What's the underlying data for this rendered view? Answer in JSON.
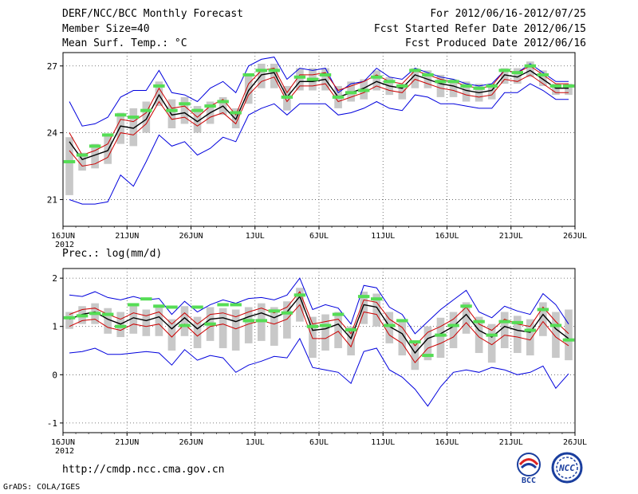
{
  "header": {
    "title": "DERF/NCC/BCC Monthly Forecast",
    "member_size": "Member Size=40",
    "variable": "Mean Surf. Temp.: °C",
    "period": "For 2012/06/16-2012/07/25",
    "refer_date": "Fcst Started Refer Date 2012/06/15",
    "produced_date": "Fcst Produced Date 2012/06/16"
  },
  "footer": {
    "url": "http://cmdp.ncc.cma.gov.cn",
    "credit": "GrADS: COLA/IGES",
    "logo_left_text": "BCC",
    "logo_right_text": "NCC"
  },
  "colors": {
    "envelope": "#0000dd",
    "spread": "#cc0000",
    "mean": "#000000",
    "obs": "#55dd55",
    "box": "#c8c8c8"
  },
  "chart_data": [
    {
      "type": "line",
      "title": "Mean Surf. Temp.: °C",
      "x_ticks": [
        "16JUN",
        "21JUN",
        "26JUN",
        "1JUL",
        "6JUL",
        "11JUL",
        "16JUL",
        "21JUL",
        "26JUL"
      ],
      "x_tick_days": [
        0,
        5,
        10,
        15,
        20,
        25,
        30,
        35,
        40
      ],
      "year_label": "2012",
      "ylim": [
        19.8,
        27.6
      ],
      "yticks": [
        21,
        24,
        27
      ],
      "series": [
        {
          "name": "max",
          "values": [
            25.4,
            24.3,
            24.4,
            24.7,
            25.6,
            25.9,
            25.9,
            26.8,
            25.8,
            25.7,
            25.4,
            26.0,
            26.3,
            25.8,
            27.0,
            27.3,
            27.4,
            26.4,
            26.9,
            26.8,
            26.9,
            25.8,
            26.2,
            26.3,
            26.9,
            26.5,
            26.4,
            26.9,
            26.7,
            26.5,
            26.4,
            26.2,
            26.1,
            26.2,
            26.8,
            26.7,
            27.1,
            26.7,
            26.3,
            26.3
          ]
        },
        {
          "name": "upper",
          "values": [
            24.0,
            23.0,
            23.2,
            23.5,
            24.6,
            24.5,
            24.9,
            26.0,
            25.1,
            25.2,
            24.7,
            25.2,
            25.5,
            24.8,
            26.2,
            26.8,
            26.9,
            25.8,
            26.6,
            26.6,
            26.7,
            25.9,
            26.1,
            26.3,
            26.6,
            26.3,
            26.2,
            26.8,
            26.6,
            26.4,
            26.3,
            26.1,
            26.0,
            26.1,
            26.8,
            26.7,
            27.0,
            26.6,
            26.2,
            26.2
          ]
        },
        {
          "name": "mean",
          "values": [
            23.6,
            22.8,
            23.0,
            23.2,
            24.3,
            24.2,
            24.6,
            25.7,
            24.8,
            24.9,
            24.5,
            24.9,
            25.2,
            24.6,
            25.9,
            26.6,
            26.7,
            25.6,
            26.3,
            26.3,
            26.4,
            25.6,
            25.8,
            26.0,
            26.3,
            26.1,
            26.0,
            26.6,
            26.4,
            26.2,
            26.1,
            25.9,
            25.8,
            25.9,
            26.6,
            26.5,
            26.8,
            26.4,
            26.0,
            26.0
          ]
        },
        {
          "name": "lower",
          "values": [
            23.2,
            22.5,
            22.6,
            22.9,
            24.0,
            23.9,
            24.4,
            25.4,
            24.6,
            24.7,
            24.3,
            24.7,
            24.9,
            24.4,
            25.7,
            26.3,
            26.5,
            25.4,
            26.1,
            26.1,
            26.2,
            25.4,
            25.6,
            25.8,
            26.1,
            25.9,
            25.8,
            26.4,
            26.2,
            26.0,
            25.9,
            25.7,
            25.6,
            25.7,
            26.4,
            26.3,
            26.6,
            26.2,
            25.8,
            25.8
          ]
        },
        {
          "name": "min",
          "values": [
            21.0,
            20.8,
            20.8,
            20.9,
            22.1,
            21.6,
            22.7,
            23.9,
            23.4,
            23.6,
            23.0,
            23.3,
            23.8,
            23.6,
            24.8,
            25.1,
            25.3,
            24.8,
            25.3,
            25.3,
            25.3,
            24.8,
            24.9,
            25.1,
            25.4,
            25.1,
            25.0,
            25.7,
            25.6,
            25.3,
            25.3,
            25.2,
            25.1,
            25.1,
            25.8,
            25.8,
            26.2,
            25.9,
            25.5,
            25.5
          ]
        },
        {
          "name": "box_high",
          "values": [
            23.8,
            23.1,
            23.5,
            23.9,
            24.9,
            25.1,
            25.4,
            26.3,
            25.5,
            25.6,
            25.2,
            25.4,
            25.6,
            25.1,
            26.6,
            27.1,
            27.1,
            26.1,
            26.9,
            26.9,
            26.9,
            26.1,
            26.3,
            26.4,
            26.8,
            26.5,
            26.2,
            26.9,
            26.8,
            26.6,
            26.4,
            26.3,
            26.2,
            26.2,
            26.9,
            26.9,
            27.2,
            26.8,
            26.2,
            26.2
          ]
        },
        {
          "name": "box_low",
          "values": [
            21.2,
            22.3,
            22.4,
            22.6,
            23.5,
            23.4,
            24.0,
            25.2,
            24.2,
            24.4,
            24.0,
            24.4,
            24.8,
            24.2,
            25.3,
            26.0,
            26.0,
            25.0,
            25.9,
            25.9,
            25.9,
            25.1,
            25.4,
            25.5,
            25.9,
            25.7,
            25.5,
            26.0,
            26.0,
            25.6,
            25.6,
            25.4,
            25.4,
            25.5,
            26.2,
            26.2,
            26.5,
            26.1,
            25.7,
            25.7
          ]
        },
        {
          "name": "obs",
          "values": [
            22.7,
            23.0,
            23.4,
            23.9,
            24.8,
            24.7,
            25.0,
            26.1,
            25.0,
            25.3,
            25.0,
            25.2,
            25.4,
            24.9,
            26.6,
            26.8,
            26.8,
            25.6,
            26.5,
            26.4,
            26.6,
            25.6,
            25.8,
            25.9,
            26.5,
            26.3,
            26.1,
            26.8,
            26.6,
            26.3,
            26.3,
            26.1,
            26.0,
            26.1,
            26.8,
            26.7,
            27.0,
            26.6,
            26.1,
            26.1
          ]
        }
      ]
    },
    {
      "type": "line",
      "title": "Prec.: log(mm/d)",
      "x_ticks": [
        "16JUN",
        "21JUN",
        "26JUN",
        "1JUL",
        "6JUL",
        "11JUL",
        "16JUL",
        "21JUL",
        "26JUL"
      ],
      "x_tick_days": [
        0,
        5,
        10,
        15,
        20,
        25,
        30,
        35,
        40
      ],
      "year_label": "2012",
      "ylim": [
        -1.2,
        2.2
      ],
      "yticks": [
        -1,
        0,
        1,
        2
      ],
      "series": [
        {
          "name": "max",
          "values": [
            1.65,
            1.62,
            1.72,
            1.6,
            1.55,
            1.62,
            1.55,
            1.58,
            1.25,
            1.52,
            1.3,
            1.45,
            1.55,
            1.48,
            1.58,
            1.6,
            1.55,
            1.65,
            2.0,
            1.35,
            1.45,
            1.38,
            1.05,
            1.85,
            1.8,
            1.4,
            1.25,
            0.85,
            1.1,
            1.35,
            1.55,
            1.75,
            1.3,
            1.18,
            1.42,
            1.32,
            1.25,
            1.68,
            1.45,
            1.05
          ]
        },
        {
          "name": "upper",
          "values": [
            1.25,
            1.35,
            1.38,
            1.25,
            1.15,
            1.28,
            1.22,
            1.3,
            1.05,
            1.28,
            1.05,
            1.25,
            1.28,
            1.2,
            1.3,
            1.38,
            1.28,
            1.4,
            1.72,
            1.05,
            1.1,
            1.15,
            0.85,
            1.55,
            1.5,
            1.15,
            0.98,
            0.6,
            0.88,
            1.0,
            1.15,
            1.4,
            1.05,
            0.92,
            1.15,
            1.05,
            1.0,
            1.4,
            1.1,
            0.85
          ]
        },
        {
          "name": "mean",
          "values": [
            1.15,
            1.25,
            1.3,
            1.15,
            1.05,
            1.18,
            1.12,
            1.2,
            0.95,
            1.18,
            0.95,
            1.15,
            1.18,
            1.1,
            1.2,
            1.28,
            1.18,
            1.3,
            1.62,
            0.92,
            0.95,
            1.05,
            0.75,
            1.45,
            1.4,
            1.0,
            0.85,
            0.45,
            0.75,
            0.85,
            1.0,
            1.25,
            0.92,
            0.78,
            1.0,
            0.92,
            0.88,
            1.25,
            0.95,
            0.75
          ]
        },
        {
          "name": "lower",
          "values": [
            1.0,
            1.12,
            1.15,
            0.98,
            0.92,
            1.05,
            1.0,
            1.05,
            0.78,
            1.05,
            0.8,
            1.0,
            1.05,
            0.95,
            1.05,
            1.12,
            1.05,
            1.15,
            1.45,
            0.75,
            0.75,
            0.9,
            0.58,
            1.3,
            1.25,
            0.82,
            0.65,
            0.25,
            0.55,
            0.65,
            0.78,
            1.08,
            0.78,
            0.62,
            0.82,
            0.78,
            0.72,
            1.1,
            0.78,
            0.6
          ]
        },
        {
          "name": "min",
          "values": [
            0.45,
            0.48,
            0.55,
            0.42,
            0.42,
            0.45,
            0.48,
            0.45,
            0.2,
            0.52,
            0.3,
            0.4,
            0.35,
            0.05,
            0.2,
            0.28,
            0.38,
            0.35,
            0.75,
            0.15,
            0.1,
            0.05,
            -0.18,
            0.48,
            0.55,
            0.1,
            -0.05,
            -0.3,
            -0.65,
            -0.25,
            0.05,
            0.1,
            0.05,
            0.15,
            0.1,
            0.0,
            0.05,
            0.18,
            -0.28,
            0.02
          ]
        },
        {
          "name": "box_high",
          "values": [
            1.3,
            1.42,
            1.48,
            1.38,
            1.3,
            1.45,
            1.35,
            1.45,
            1.15,
            1.42,
            1.2,
            1.4,
            1.38,
            1.35,
            1.4,
            1.48,
            1.4,
            1.52,
            1.8,
            1.2,
            1.25,
            1.3,
            1.0,
            1.72,
            1.68,
            1.3,
            1.15,
            0.7,
            1.0,
            1.18,
            1.3,
            1.5,
            1.2,
            1.05,
            1.3,
            1.22,
            1.15,
            1.5,
            1.3,
            1.35
          ]
        },
        {
          "name": "box_low",
          "values": [
            0.95,
            1.05,
            1.05,
            0.85,
            0.78,
            0.85,
            0.8,
            0.8,
            0.5,
            0.8,
            0.55,
            0.7,
            0.55,
            0.5,
            0.65,
            0.7,
            0.6,
            0.75,
            1.1,
            0.35,
            0.5,
            0.55,
            0.4,
            1.05,
            1.0,
            0.65,
            0.4,
            0.1,
            0.3,
            0.35,
            0.55,
            0.85,
            0.45,
            0.25,
            0.55,
            0.45,
            0.4,
            0.8,
            0.35,
            0.3
          ]
        },
        {
          "name": "obs",
          "values": [
            1.18,
            1.22,
            1.27,
            1.25,
            1.0,
            1.45,
            1.57,
            1.42,
            1.4,
            1.02,
            1.4,
            1.05,
            1.45,
            1.45,
            1.12,
            1.12,
            1.32,
            1.28,
            1.65,
            1.0,
            1.02,
            1.25,
            0.93,
            1.62,
            1.57,
            1.02,
            1.12,
            0.68,
            0.4,
            0.82,
            1.02,
            1.42,
            1.1,
            0.82,
            1.1,
            1.08,
            0.92,
            1.35,
            1.02,
            0.72
          ]
        }
      ]
    }
  ]
}
